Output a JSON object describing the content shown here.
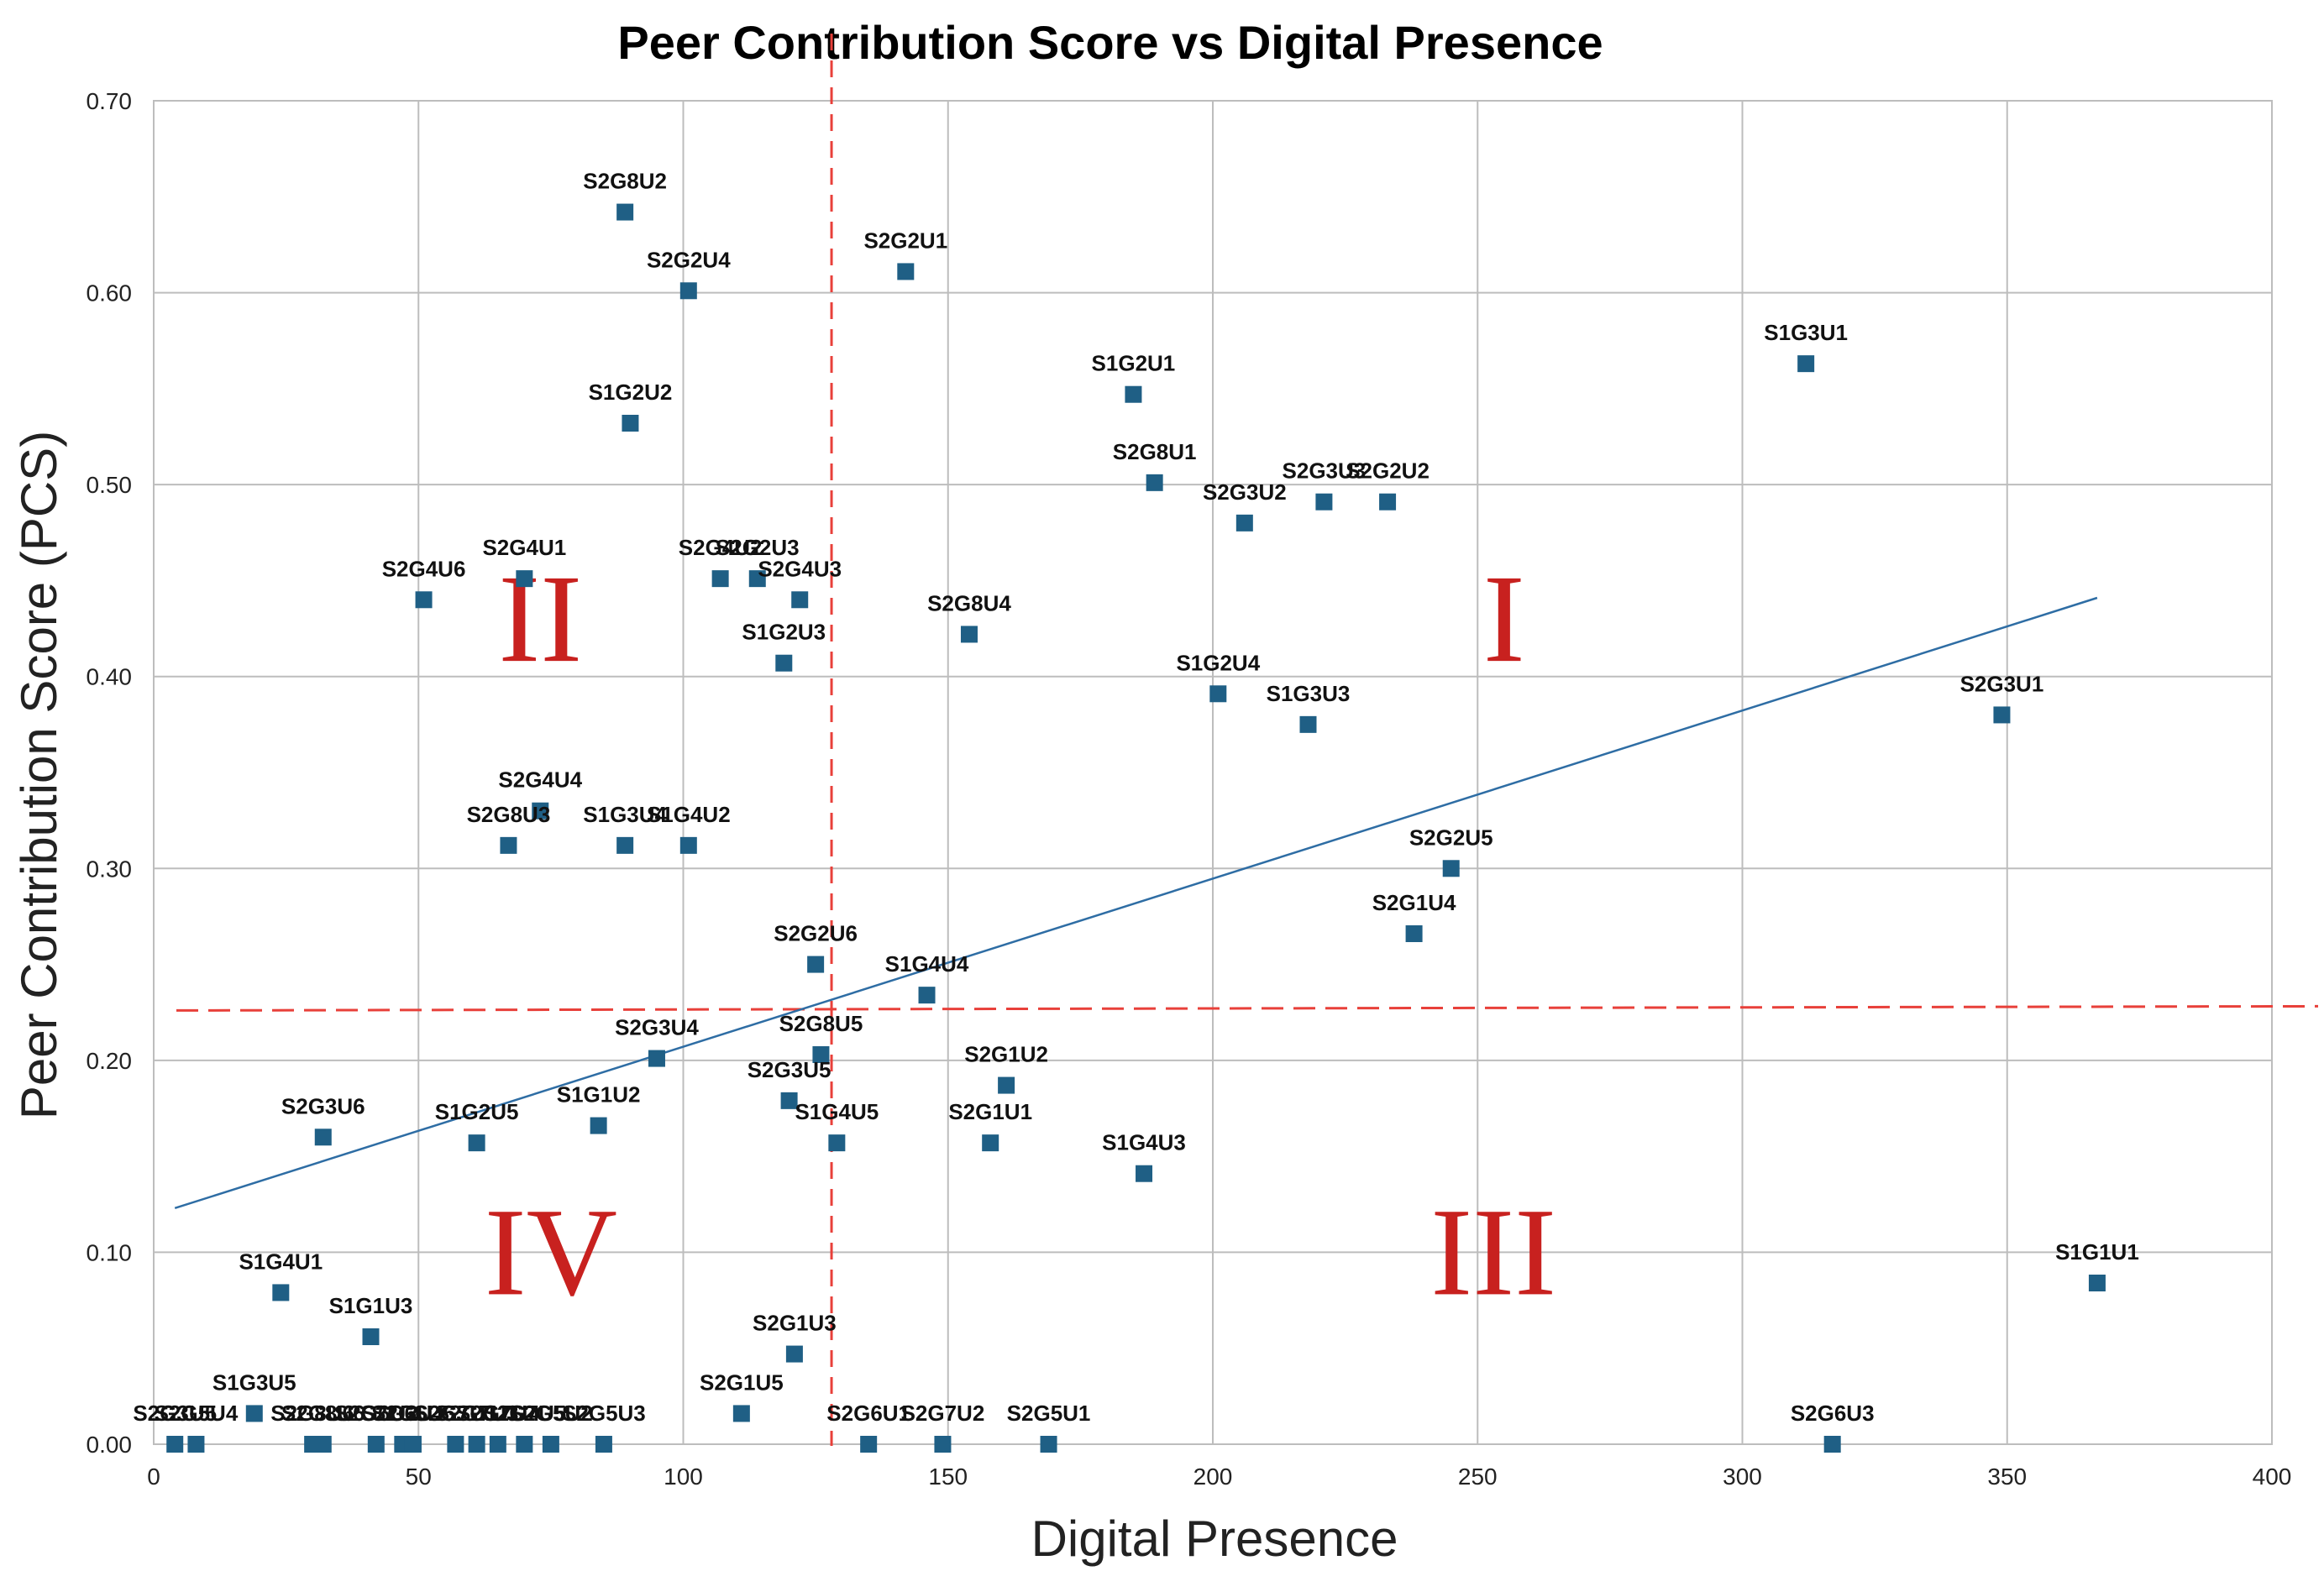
{
  "chart_data": {
    "type": "scatter",
    "title": "Peer Contribution Score vs Digital Presence",
    "xlabel": "Digital Presence",
    "ylabel": "Peer Contribution Score (PCS)",
    "xlim": [
      0,
      400
    ],
    "ylim": [
      0,
      0.7
    ],
    "x_ticks": [
      0,
      50,
      100,
      150,
      200,
      250,
      300,
      350,
      400
    ],
    "x_tick_labels": [
      "0",
      "50",
      "100",
      "150",
      "200",
      "250",
      "300",
      "350",
      "400"
    ],
    "y_ticks": [
      0,
      0.1,
      0.2,
      0.3,
      0.4,
      0.5,
      0.6,
      0.7
    ],
    "y_tick_labels": [
      "0.00",
      "0.10",
      "0.20",
      "0.30",
      "0.40",
      "0.50",
      "0.60",
      "0.70"
    ],
    "grid": true,
    "marker_color": "#1f5f85",
    "trendline": {
      "x": [
        4,
        367
      ],
      "y": [
        0.123,
        0.441
      ],
      "color": "#2e6da4"
    },
    "reference_lines": {
      "vertical_x": 128,
      "horizontal_y": 0.226,
      "color": "#e8403a"
    },
    "quadrants": [
      {
        "label": "I",
        "x": 255,
        "y": 0.43
      },
      {
        "label": "II",
        "x": 73,
        "y": 0.43
      },
      {
        "label": "III",
        "x": 253,
        "y": 0.1
      },
      {
        "label": "IV",
        "x": 75,
        "y": 0.1
      }
    ],
    "points": [
      {
        "label": "S2G8U2",
        "x": 89,
        "y": 0.642
      },
      {
        "label": "S2G2U4",
        "x": 101,
        "y": 0.601
      },
      {
        "label": "S2G2U1",
        "x": 142,
        "y": 0.611
      },
      {
        "label": "S1G2U2",
        "x": 90,
        "y": 0.532
      },
      {
        "label": "S1G2U1",
        "x": 185,
        "y": 0.547
      },
      {
        "label": "S1G3U1",
        "x": 312,
        "y": 0.563
      },
      {
        "label": "S2G8U1",
        "x": 189,
        "y": 0.501
      },
      {
        "label": "S2G3U2",
        "x": 206,
        "y": 0.48
      },
      {
        "label": "S2G3U3",
        "x": 221,
        "y": 0.491
      },
      {
        "label": "S2G2U2",
        "x": 233,
        "y": 0.491
      },
      {
        "label": "S2G4U6",
        "x": 51,
        "y": 0.44
      },
      {
        "label": "S2G4U1",
        "x": 70,
        "y": 0.451
      },
      {
        "label": "S2G4U2",
        "x": 107,
        "y": 0.451
      },
      {
        "label": "S2G2U3",
        "x": 114,
        "y": 0.451
      },
      {
        "label": "S2G4U3",
        "x": 122,
        "y": 0.44
      },
      {
        "label": "S1G2U3",
        "x": 119,
        "y": 0.407
      },
      {
        "label": "S2G8U4",
        "x": 154,
        "y": 0.422
      },
      {
        "label": "S1G2U4",
        "x": 201,
        "y": 0.391
      },
      {
        "label": "S1G3U3",
        "x": 218,
        "y": 0.375
      },
      {
        "label": "S2G3U1",
        "x": 349,
        "y": 0.38
      },
      {
        "label": "S2G4U4",
        "x": 73,
        "y": 0.33
      },
      {
        "label": "S2G8U3",
        "x": 67,
        "y": 0.312
      },
      {
        "label": "S1G3U4",
        "x": 89,
        "y": 0.312
      },
      {
        "label": "S1G4U2",
        "x": 101,
        "y": 0.312
      },
      {
        "label": "S2G2U5",
        "x": 245,
        "y": 0.3
      },
      {
        "label": "S2G1U4",
        "x": 238,
        "y": 0.266
      },
      {
        "label": "S2G2U6",
        "x": 125,
        "y": 0.25
      },
      {
        "label": "S1G4U4",
        "x": 146,
        "y": 0.234
      },
      {
        "label": "S2G8U5",
        "x": 126,
        "y": 0.203
      },
      {
        "label": "S2G3U4",
        "x": 95,
        "y": 0.201
      },
      {
        "label": "S2G1U2",
        "x": 161,
        "y": 0.187
      },
      {
        "label": "S2G3U5",
        "x": 120,
        "y": 0.179
      },
      {
        "label": "S1G4U5",
        "x": 129,
        "y": 0.157
      },
      {
        "label": "S2G1U1",
        "x": 158,
        "y": 0.157
      },
      {
        "label": "S1G1U2",
        "x": 84,
        "y": 0.166
      },
      {
        "label": "S1G2U5",
        "x": 61,
        "y": 0.157
      },
      {
        "label": "S2G3U6",
        "x": 32,
        "y": 0.16
      },
      {
        "label": "S1G4U3",
        "x": 187,
        "y": 0.141
      },
      {
        "label": "S1G1U1",
        "x": 367,
        "y": 0.084
      },
      {
        "label": "S1G4U1",
        "x": 24,
        "y": 0.079
      },
      {
        "label": "S1G1U3",
        "x": 41,
        "y": 0.056
      },
      {
        "label": "S2G1U3",
        "x": 121,
        "y": 0.047
      },
      {
        "label": "S1G3U5",
        "x": 19,
        "y": 0.016
      },
      {
        "label": "S2G1U5",
        "x": 111,
        "y": 0.016
      },
      {
        "label": "S2G6U1",
        "x": 135,
        "y": 0.0
      },
      {
        "label": "S2G7U2",
        "x": 149,
        "y": 0.0
      },
      {
        "label": "S2G5U1",
        "x": 169,
        "y": 0.0
      },
      {
        "label": "S2G6U3",
        "x": 317,
        "y": 0.0
      },
      {
        "label": "S2G5U3",
        "x": 85,
        "y": 0.0
      },
      {
        "label": "S2G5U4",
        "x": 8,
        "y": 0.0
      },
      {
        "label": "S2G3U5",
        "x": 4,
        "y": 0.0
      },
      {
        "label": "S2G8U6",
        "x": 30,
        "y": 0.0
      },
      {
        "label": "S2G8U6",
        "x": 32,
        "y": 0.0
      },
      {
        "label": "S2G6U2",
        "x": 42,
        "y": 0.0
      },
      {
        "label": "S2G6U4",
        "x": 47,
        "y": 0.0
      },
      {
        "label": "S2G6U5",
        "x": 49,
        "y": 0.0
      },
      {
        "label": "S2G7U1",
        "x": 57,
        "y": 0.0
      },
      {
        "label": "S2G7U3",
        "x": 61,
        "y": 0.0
      },
      {
        "label": "S2G7U4",
        "x": 65,
        "y": 0.0
      },
      {
        "label": "S2G7U5",
        "x": 70,
        "y": 0.0
      },
      {
        "label": "S2G5U2",
        "x": 75,
        "y": 0.0
      }
    ]
  }
}
